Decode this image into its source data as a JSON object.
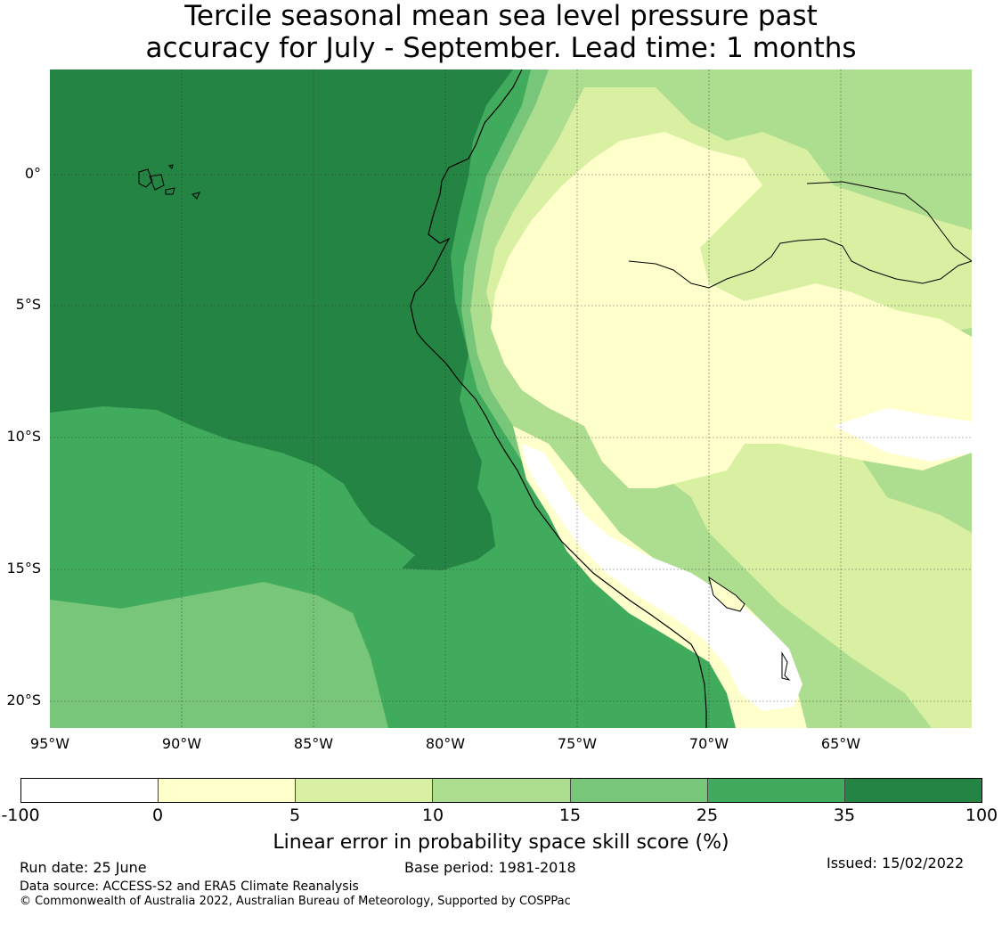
{
  "title": {
    "line1": "Tercile seasonal mean sea level pressure past",
    "line2": "accuracy for July - September. Lead time: 1 months"
  },
  "map": {
    "lon_range": [
      -95,
      -60
    ],
    "lat_range": [
      -21,
      4
    ],
    "lat_ticks": [
      "0°",
      "5°S",
      "10°S",
      "15°S",
      "20°S"
    ],
    "lon_ticks": [
      "95°W",
      "90°W",
      "85°W",
      "80°W",
      "75°W",
      "70°W",
      "65°W"
    ]
  },
  "colorbar": {
    "colors": [
      "#ffffff",
      "#ffffcc",
      "#d9f0a3",
      "#addd8e",
      "#78c679",
      "#41ab5d",
      "#238443"
    ],
    "labels": [
      "-100",
      "0",
      "5",
      "10",
      "15",
      "25",
      "35",
      "100"
    ],
    "title": "Linear error in probability space skill score (%)"
  },
  "footer": {
    "run_date": "Run date: 25 June",
    "base_period": "Base period: 1981-2018",
    "issued": "Issued: 15/02/2022",
    "data_source": "Data source: ACCESS-S2 and ERA5 Climate Reanalysis",
    "copyright": "© Commonwealth of Australia 2022, Australian Bureau of Meteorology, Supported by COSPPac"
  }
}
